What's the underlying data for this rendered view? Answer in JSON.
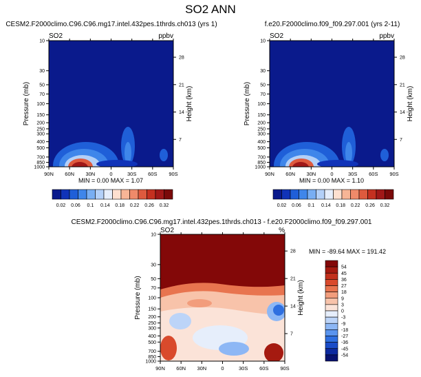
{
  "figure": {
    "title": "SO2 ANN"
  },
  "colors": {
    "abs_levels": [
      "#0a1a8c",
      "#1033b8",
      "#1f5fd8",
      "#3f86ea",
      "#78aef3",
      "#b3d0f8",
      "#e6eefb",
      "#fde0d0",
      "#f7b596",
      "#ef8a6a",
      "#de5a3e",
      "#c43020",
      "#a01818",
      "#7a0a0a"
    ],
    "diff_levels": [
      "#081270",
      "#0d2aa0",
      "#1a4cc8",
      "#2f6fe0",
      "#5a94ee",
      "#8db7f5",
      "#bcd4f8",
      "#e6eefb",
      "#fbe3d8",
      "#f8c3aa",
      "#f29d7c",
      "#e8744f",
      "#d94a2c",
      "#c2301c",
      "#a51a10",
      "#830808"
    ]
  },
  "chart_data": [
    {
      "type": "heatmap",
      "title": "CESM2.F2000climo.C96.C96.mg17.intel.432pes.1thrds.ch013 (yrs 1)",
      "var_label": "SO2",
      "units": "ppbv",
      "ylabel": "Pressure (mb)",
      "y2label": "Height (km)",
      "xticks": [
        "90N",
        "60N",
        "30N",
        "0",
        "30S",
        "60S",
        "90S"
      ],
      "yticks": [
        10,
        30,
        50,
        70,
        100,
        150,
        200,
        250,
        300,
        400,
        500,
        700,
        850,
        1000
      ],
      "y2ticks": [
        28,
        21,
        14,
        7
      ],
      "min": 0.0,
      "max": 1.07,
      "stats_text": "MIN =  0.00  MAX =  1.07",
      "colorbar_labels": [
        "0.02",
        "0.06",
        "0.1",
        "0.14",
        "0.18",
        "0.22",
        "0.26",
        "0.32"
      ]
    },
    {
      "type": "heatmap",
      "title": "f.e20.F2000climo.f09_f09.297.001 (yrs 2-11)",
      "var_label": "SO2",
      "units": "ppbv",
      "ylabel": "Pressure (mb)",
      "y2label": "Height (km)",
      "xticks": [
        "90N",
        "60N",
        "30N",
        "0",
        "30S",
        "60S",
        "90S"
      ],
      "yticks": [
        10,
        30,
        50,
        70,
        100,
        150,
        200,
        250,
        300,
        400,
        500,
        700,
        850,
        1000
      ],
      "y2ticks": [
        28,
        21,
        14,
        7
      ],
      "min": 0.0,
      "max": 1.1,
      "stats_text": "MIN =  0.00  MAX =  1.10",
      "colorbar_labels": [
        "0.02",
        "0.06",
        "0.1",
        "0.14",
        "0.18",
        "0.22",
        "0.26",
        "0.32"
      ]
    },
    {
      "type": "heatmap",
      "title": "CESM2.F2000climo.C96.C96.mg17.intel.432pes.1thrds.ch013 - f.e20.F2000climo.f09_f09.297.001",
      "var_label": "SO2",
      "units": "%",
      "ylabel": "Pressure (mb)",
      "y2label": "Height (km)",
      "xticks": [
        "90N",
        "60N",
        "30N",
        "0",
        "30S",
        "60S",
        "90S"
      ],
      "yticks": [
        10,
        30,
        50,
        70,
        100,
        150,
        200,
        250,
        300,
        400,
        500,
        700,
        850,
        1000
      ],
      "y2ticks": [
        28,
        21,
        14,
        7
      ],
      "min": -89.64,
      "max": 191.42,
      "stats_text": "MIN = -89.64  MAX = 191.42",
      "colorbar_labels": [
        "54",
        "45",
        "36",
        "27",
        "18",
        "9",
        "3",
        "0",
        "-3",
        "-9",
        "-18",
        "-27",
        "-36",
        "-45",
        "-54"
      ]
    }
  ]
}
